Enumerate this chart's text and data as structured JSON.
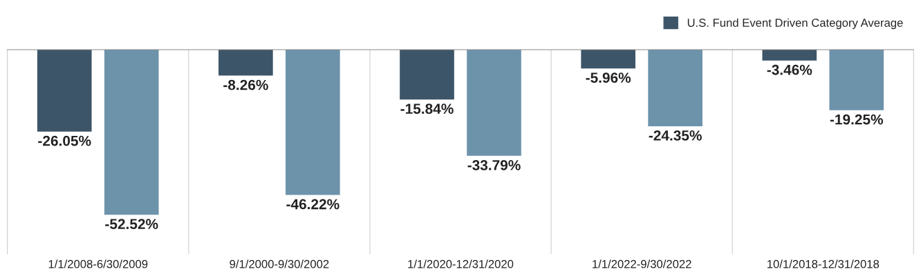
{
  "chart_data": {
    "type": "bar",
    "categories": [
      "1/1/2008-6/30/2009",
      "9/1/2000-9/30/2002",
      "1/1/2020-12/31/2020",
      "1/1/2022-9/30/2022",
      "10/1/2018-12/31/2018"
    ],
    "series": [
      {
        "name": "U.S. Fund Event Driven Category Average",
        "color": "#3d5568",
        "values": [
          -26.05,
          -8.26,
          -15.84,
          -5.96,
          -3.46
        ],
        "value_labels": [
          "-26.05%",
          "-8.26%",
          "-15.84%",
          "-5.96%",
          "-3.46%"
        ]
      },
      {
        "color": "#6d93ab",
        "values": [
          -52.52,
          -46.22,
          -33.79,
          -24.35,
          -19.25
        ],
        "value_labels": [
          "-52.52%",
          "-46.22%",
          "-33.79%",
          "-24.35%",
          "-19.25%"
        ]
      }
    ],
    "ylim": [
      -65,
      0
    ],
    "tick_labels": "x",
    "legend": "top right",
    "grid": false
  }
}
